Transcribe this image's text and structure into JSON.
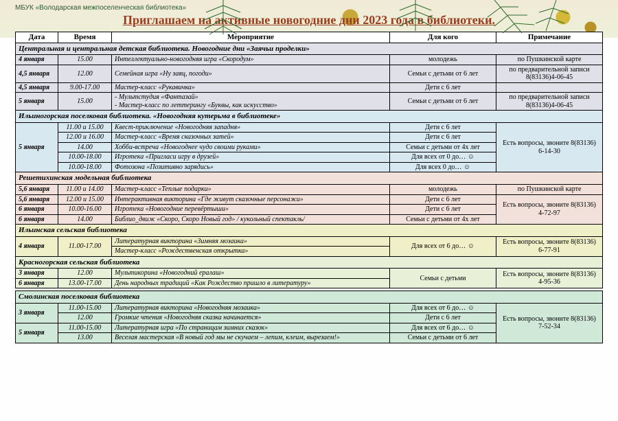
{
  "org": "МБУК «Володарская межпоселенческая библиотека»",
  "title": "Приглашаем на активные новогодние дни 2023 года в библиотеки.",
  "headers": {
    "date": "Дата",
    "time": "Время",
    "event": "Мероприятие",
    "audience": "Для кого",
    "note": "Примечание"
  },
  "sections": [
    {
      "title": "Центральная и центральная детская библиотека. Новогодние дни «Заячьи проделки»",
      "bg": "bg-lib1",
      "rows": [
        {
          "date": "4 января",
          "time": "15.00",
          "event": "Интеллектуально-новогодняя игра «Скородум»",
          "aud": "молодежь",
          "note": "по Пушкинской карте"
        },
        {
          "date": "4,5 января",
          "time": "12.00",
          "event": "Семейная игра «Ну заяц, погоди»",
          "aud": "Семьи с детьми от 6 лет",
          "note": "по предварительной записи 8(83136)4-06-45"
        },
        {
          "date": "4,5 января",
          "time": "9.00-17.00",
          "event": "Мастер-класс «Рукавичка»",
          "aud": "Дети с 6 лет",
          "note": ""
        },
        {
          "date": "5 января",
          "time": "15.00",
          "event": "- Мультстудия «Фантазай»\n- Мастер-класс по леттерингу «Буквы, как искусство»",
          "aud": "Семьи с детьми от 6 лет",
          "note": "по предварительной записи 8(83136)4-06-45"
        }
      ]
    },
    {
      "title": "Ильиногорская поселковая библиотека. «Новогодняя кутерьма в библиотеке»",
      "bg": "bg-lib2",
      "rows": [
        {
          "date": "5 января",
          "rowspan": 5,
          "time": "11.00 и 15.00",
          "event": "Квест-приключение «Новогодняя западня»",
          "aud": "Дети с 6 лет",
          "note": "Есть вопросы, звоните 8(83136) 6-14-30",
          "note_rowspan": 5
        },
        {
          "time": "12.00 и 16.00",
          "event": "Мастер-класс «Время сказочных затей»",
          "aud": "Дети с 6 лет"
        },
        {
          "time": "14.00",
          "event": "Хобби-встреча «Новогоднее чудо своими руками»",
          "aud": "Семьи с детьми от 4х лет"
        },
        {
          "time": "10.00-18.00",
          "event": "Игротека «Пригласи игру в друзей»",
          "aud": "Для всех от 0 до… ☺"
        },
        {
          "time": "10.00-18.00",
          "event": "Фотозона «Позитивно зарядись»",
          "aud": "Для всех 0 до… ☺"
        }
      ]
    },
    {
      "title": "Решетихинская модельная библиотека",
      "bg": "bg-lib3",
      "rows": [
        {
          "date": "5,6 января",
          "time": "11.00 и 14.00",
          "event": "Мастер-класс «Теплые подарки»",
          "aud": "молодежь",
          "note": "по Пушкинской карте"
        },
        {
          "date": "5,6 января",
          "time": "12.00 и 15.00",
          "event": "Интерактивная викторина «Где живут сказочные персонажи»",
          "aud": "Дети с 6 лет",
          "note": "Есть вопросы, звоните 8(83136) 4-72-97",
          "note_rowspan": 3
        },
        {
          "date": "6 января",
          "time": "10.00-16.00",
          "event": "Игротека «Новогодние перевёртыши»",
          "aud": "Дети с 6 лет"
        },
        {
          "date": "6 января",
          "time": "14.00",
          "event": "Библио_движ «Скоро, Скоро Новый год» / кукольный спектакль/",
          "aud": "Семьи с детьми от 4х лет"
        }
      ]
    },
    {
      "title": "Ильинская сельская библиотека",
      "bg": "bg-lib4",
      "rows": [
        {
          "date": "4 января",
          "rowspan": 2,
          "time": "11.00-17.00",
          "time_rowspan": 2,
          "event": "Литературная викторина «Зимняя мозаика»",
          "aud": "Для всех от 6 до… ☺",
          "aud_rowspan": 2,
          "note": "Есть вопросы, звоните 8(83136) 6-77-91",
          "note_rowspan": 2
        },
        {
          "event": "Мастер-класс «Рождественская открытка»"
        }
      ]
    },
    {
      "title": "Красногорская сельская библиотека",
      "bg": "bg-lib5",
      "rows": [
        {
          "date": "3 января",
          "time": "12.00",
          "event": "Мультикорина «Новогодний ералаш»",
          "aud": "Семьи с детьми",
          "aud_rowspan": 2,
          "note": "Есть вопросы, звоните 8(83136) 4-95-36",
          "note_rowspan": 2
        },
        {
          "date": "6 января",
          "time": "13.00-17.00",
          "event": "День народных традиций «Как Рождество пришло в литературу»"
        }
      ]
    },
    {
      "spacer": true
    },
    {
      "title": "Смолинская поселковая библиотека",
      "bg": "bg-lib6",
      "rows": [
        {
          "date": "3 января",
          "rowspan": 2,
          "time": "11.00-15.00",
          "event": "Литературная викторина «Новогодняя мозаика»",
          "aud": "Для всех от 6 до… ☺",
          "note": "Есть вопросы, звоните 8(83136) 7-52-34",
          "note_rowspan": 4
        },
        {
          "time": "12.00",
          "event": "Громкие чтения «Новогодняя сказка начинается»",
          "aud": "Дети с 6 лет"
        },
        {
          "date": "5 января",
          "rowspan": 2,
          "time": "11.00-15.00",
          "event": "Литературная игра «По страницам зимних сказок»",
          "aud": "Для всех от 6 до… ☺"
        },
        {
          "time": "13.00",
          "event": "Веселая мастерская «В новый год мы не скучаем – лепим, клеим, вырезаем!»",
          "aud": "Семьи с детьми от 6 лет"
        }
      ]
    }
  ]
}
